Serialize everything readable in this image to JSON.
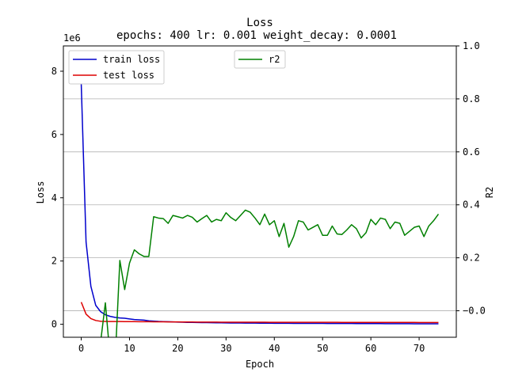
{
  "chart_data": {
    "type": "line",
    "title": "Loss",
    "subtitle": "epochs: 400 lr: 0.001 weight_decay: 0.0001",
    "xlabel": "Epoch",
    "ylabel_left": "Loss",
    "ylabel_right": "R2",
    "left_scale_label": "1e6",
    "xlim": [
      -3.7,
      77.7
    ],
    "ylim_left": [
      -410000,
      8800000
    ],
    "ylim_right": [
      -0.1,
      1.0
    ],
    "x_ticks": [
      0,
      10,
      20,
      30,
      40,
      50,
      60,
      70
    ],
    "y_left_ticks": [
      0,
      2,
      4,
      6,
      8
    ],
    "y_right_ticks": [
      "−0.0",
      "0.2",
      "0.4",
      "0.6",
      "0.8",
      "1.0"
    ],
    "y_right_tick_values": [
      0.0,
      0.2,
      0.4,
      0.6,
      0.8,
      1.0
    ],
    "grid": "horizontal lines at right-axis ticks",
    "legends": [
      {
        "placement": "upper-left",
        "entries": [
          "train loss",
          "test loss"
        ]
      },
      {
        "placement": "upper-center",
        "entries": [
          "r2"
        ]
      }
    ],
    "series": [
      {
        "name": "train loss",
        "axis": "left",
        "color": "#0000cc",
        "x": [
          0,
          1,
          2,
          3,
          4,
          5,
          6,
          7,
          8,
          9,
          10,
          11,
          12,
          13,
          14,
          15,
          16,
          17,
          18,
          19,
          20,
          21,
          22,
          23,
          24,
          25,
          26,
          27,
          28,
          29,
          30,
          31,
          32,
          33,
          34,
          35,
          36,
          37,
          38,
          39,
          40,
          41,
          42,
          43,
          44,
          45,
          46,
          47,
          48,
          49,
          50,
          51,
          52,
          53,
          54,
          55,
          56,
          57,
          58,
          59,
          60,
          61,
          62,
          63,
          64,
          65,
          66,
          67,
          68,
          69,
          70,
          71,
          72,
          73,
          74
        ],
        "values": [
          7600000,
          2600000,
          1200000,
          600000,
          400000,
          300000,
          250000,
          220000,
          200000,
          190000,
          170000,
          150000,
          140000,
          130000,
          110000,
          100000,
          90000,
          85000,
          80000,
          75000,
          70000,
          65000,
          60000,
          58000,
          56000,
          54000,
          52000,
          50000,
          48000,
          46000,
          44000,
          42000,
          40000,
          39000,
          38000,
          37000,
          36000,
          35000,
          34000,
          33000,
          32000,
          31000,
          30500,
          30000,
          29500,
          29000,
          28500,
          28000,
          27500,
          27000,
          26500,
          26000,
          25500,
          25000,
          24500,
          24000,
          23500,
          23000,
          22500,
          22000,
          21500,
          21000,
          20500,
          20000,
          19500,
          19000,
          18500,
          18000,
          17500,
          17000,
          16500,
          16000,
          15500,
          15000,
          14500
        ]
      },
      {
        "name": "test loss",
        "axis": "left",
        "color": "#dd0000",
        "x": [
          0,
          1,
          2,
          3,
          4,
          5,
          6,
          7,
          8,
          9,
          10,
          11,
          12,
          13,
          14,
          15,
          16,
          17,
          18,
          19,
          20,
          21,
          22,
          23,
          24,
          25,
          26,
          27,
          28,
          29,
          30,
          31,
          32,
          33,
          34,
          35,
          36,
          37,
          38,
          39,
          40,
          41,
          42,
          43,
          44,
          45,
          46,
          47,
          48,
          49,
          50,
          51,
          52,
          53,
          54,
          55,
          56,
          57,
          58,
          59,
          60,
          61,
          62,
          63,
          64,
          65,
          66,
          67,
          68,
          69,
          70,
          71,
          72,
          73,
          74
        ],
        "values": [
          700000,
          320000,
          180000,
          120000,
          95000,
          90000,
          88000,
          87000,
          86000,
          85000,
          84000,
          83000,
          82000,
          81000,
          80000,
          79000,
          78000,
          77000,
          76000,
          75000,
          74000,
          73000,
          72000,
          71000,
          70000,
          69000,
          68500,
          68000,
          67500,
          67000,
          66500,
          66000,
          65500,
          65000,
          64800,
          64600,
          64400,
          64200,
          64000,
          63800,
          63600,
          63400,
          63200,
          63000,
          62800,
          62600,
          62400,
          62200,
          62000,
          61800,
          61600,
          61400,
          61200,
          61000,
          60800,
          60600,
          60400,
          60200,
          60000,
          59800,
          59600,
          59400,
          59200,
          59000,
          58800,
          58600,
          58400,
          58200,
          58000,
          57800,
          57600,
          57400,
          57200,
          57000,
          56800
        ]
      },
      {
        "name": "r2",
        "axis": "right",
        "color": "#008000",
        "x": [
          4,
          5,
          6,
          7,
          8,
          9,
          10,
          11,
          12,
          13,
          14,
          15,
          16,
          17,
          18,
          19,
          20,
          21,
          22,
          23,
          24,
          25,
          26,
          27,
          28,
          29,
          30,
          31,
          32,
          33,
          34,
          35,
          36,
          37,
          38,
          39,
          40,
          41,
          42,
          43,
          44,
          45,
          46,
          47,
          48,
          49,
          50,
          51,
          52,
          53,
          54,
          55,
          56,
          57,
          58,
          59,
          60,
          61,
          62,
          63,
          64,
          65,
          66,
          67,
          68,
          69,
          70,
          71,
          72,
          73,
          74
        ],
        "values": [
          -0.12,
          0.03,
          -0.18,
          -0.2,
          0.19,
          0.08,
          0.18,
          0.23,
          0.215,
          0.205,
          0.205,
          0.355,
          0.35,
          0.348,
          0.33,
          0.36,
          0.355,
          0.35,
          0.36,
          0.353,
          0.335,
          0.348,
          0.36,
          0.335,
          0.345,
          0.34,
          0.37,
          0.352,
          0.34,
          0.36,
          0.38,
          0.372,
          0.35,
          0.325,
          0.365,
          0.325,
          0.34,
          0.28,
          0.33,
          0.24,
          0.28,
          0.34,
          0.335,
          0.305,
          0.315,
          0.325,
          0.285,
          0.285,
          0.32,
          0.29,
          0.288,
          0.305,
          0.325,
          0.31,
          0.275,
          0.295,
          0.345,
          0.325,
          0.35,
          0.345,
          0.31,
          0.335,
          0.33,
          0.285,
          0.3,
          0.315,
          0.32,
          0.28,
          0.32,
          0.34,
          0.365
        ]
      }
    ]
  }
}
